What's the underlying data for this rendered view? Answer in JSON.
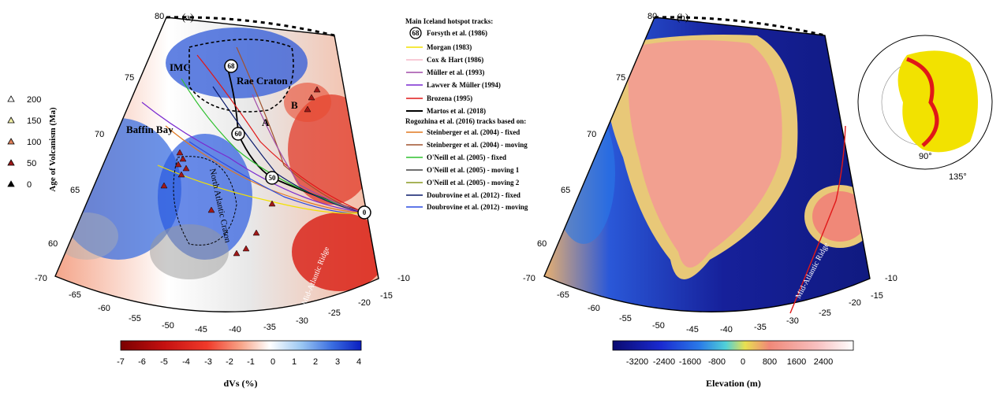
{
  "panel_a": {
    "label": "(a)",
    "lat_labels": [
      "80",
      "75",
      "70",
      "65",
      "60"
    ],
    "lon_labels": [
      "-70",
      "-65",
      "-60",
      "-55",
      "-50",
      "-45",
      "-40",
      "-35",
      "-30",
      "-25",
      "-20",
      "-15",
      "-10"
    ],
    "region_labels": {
      "imc": "IMC",
      "rae": "Rae Craton",
      "baffin": "Baffin Bay",
      "craton": "North Atlantic Craton",
      "ridge": "Mid-Atlantic Ridge",
      "a": "A",
      "b": "B"
    },
    "track_markers": [
      "68",
      "60",
      "50",
      "0"
    ],
    "colorbar": {
      "ticks": [
        "-7",
        "-6",
        "-5",
        "-4",
        "-3",
        "-2",
        "-1",
        "0",
        "1",
        "2",
        "3",
        "4"
      ],
      "label": "dVs (%)",
      "colors": [
        "#7a0000",
        "#c41010",
        "#f03a2a",
        "#f8a488",
        "#ffffff",
        "#9cc8f2",
        "#3a6de0",
        "#0a1ec0"
      ]
    }
  },
  "volcanism_legend": {
    "title": "Age of Volcanism (Ma)",
    "items": [
      {
        "label": "200",
        "color": "#ffffff"
      },
      {
        "label": "150",
        "color": "#f3f0a8"
      },
      {
        "label": "100",
        "color": "#e0805a"
      },
      {
        "label": "50",
        "color": "#a01818"
      },
      {
        "label": "0",
        "color": "#000000"
      }
    ]
  },
  "track_legend": {
    "main_heading": "Main Iceland hotspot tracks:",
    "main_items": [
      {
        "label": "Forsyth et al. (1986)",
        "symbol": "circle",
        "symbol_text": "68"
      },
      {
        "label": "Morgan (1983)",
        "color": "#f2e200"
      },
      {
        "label": "Cox & Hart (1986)",
        "color": "#f6b8c8"
      },
      {
        "label": "Müller et al. (1993)",
        "color": "#a04ca8"
      },
      {
        "label": "Lawver & Müller (1994)",
        "color": "#7a2ad0"
      },
      {
        "label": "Brozena (1995)",
        "color": "#e01818"
      },
      {
        "label": "Martos et al. (2018)",
        "color": "#000000"
      }
    ],
    "rog_heading": "Rogozhina et al. (2016) tracks based on:",
    "rog_items": [
      {
        "label": "Steinberger et al. (2004) - fixed",
        "color": "#e07820"
      },
      {
        "label": "Steinberger et al. (2004) - moving",
        "color": "#a0522d"
      },
      {
        "label": "O'Neill et al. (2005) - fixed",
        "color": "#2ec02e"
      },
      {
        "label": "O'Neill et al. (2005) - moving 1",
        "color": "#404040"
      },
      {
        "label": "O'Neill et al. (2005) - moving 2",
        "color": "#8a9a20"
      },
      {
        "label": "Doubrovine et al. (2012) - fixed",
        "color": "#0a1a6a"
      },
      {
        "label": "Doubrovine et al. (2012) - moving",
        "color": "#2a4ae0"
      }
    ]
  },
  "panel_b": {
    "label": "(b)",
    "lat_labels": [
      "80",
      "75",
      "70",
      "65",
      "60"
    ],
    "lon_labels": [
      "-70",
      "-65",
      "-60",
      "-55",
      "-50",
      "-45",
      "-40",
      "-35",
      "-30",
      "-25",
      "-20",
      "-15",
      "-10"
    ],
    "ridge_label": "Mid-Atlantic Ridge",
    "inset_labels": [
      "90°",
      "135°"
    ],
    "colorbar": {
      "ticks": [
        "-3200",
        "-2400",
        "-1600",
        "-800",
        "0",
        "800",
        "1600",
        "2400"
      ],
      "label": "Elevation (m)",
      "colors": [
        "#0a0a70",
        "#1a2ad0",
        "#2a7ae8",
        "#50d0d8",
        "#e8e050",
        "#f08878",
        "#f8c0c0",
        "#ffffff"
      ]
    }
  }
}
